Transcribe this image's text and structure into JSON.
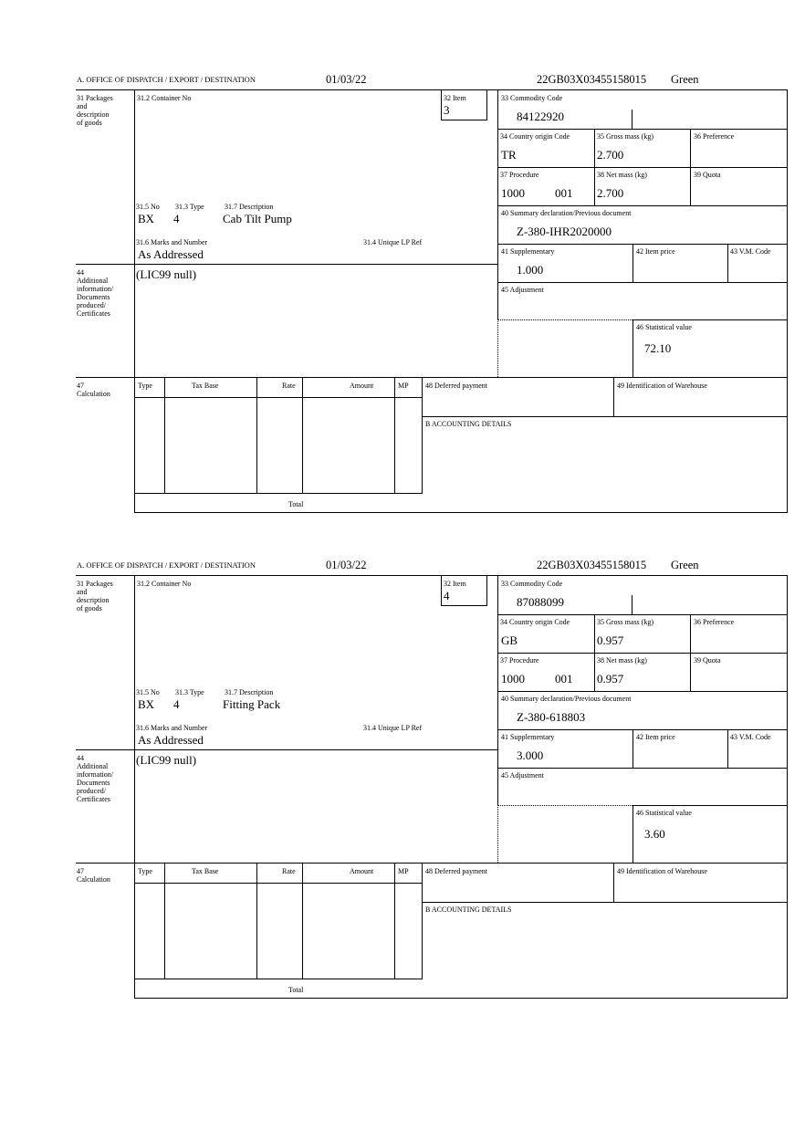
{
  "labels": {
    "office": "A. OFFICE OF DISPATCH / EXPORT / DESTINATION",
    "packages": "31 Packages\nand\ndescription\nof goods",
    "container_no": "31.2 Container No",
    "item": "32 Item",
    "commodity_code": "33 Commodity Code",
    "country_origin": "34 Country origin Code",
    "gross_mass": "35 Gross mass (kg)",
    "preference": "36 Preference",
    "procedure": "37 Procedure",
    "net_mass": "38 Net mass (kg)",
    "quota": "39 Quota",
    "summary_decl": "40 Summary declaration/Previous document",
    "supplementary": "41 Supplementary",
    "item_price": "42 Item price",
    "vm_code": "43 V.M. Code",
    "adjustment": "45 Adjustment",
    "statistical_value": "46 Statistical value",
    "no": "31.5 No",
    "type": "31.3 Type",
    "description": "31.7 Description",
    "marks": "31.6 Marks and Number",
    "unique_lp": "31.4 Unique LP Ref",
    "additional_info": "44\nAdditional\ninformation/\nDocuments\nproduced/\nCertificates",
    "calculation": "47\nCalculation",
    "calc_type": "Type",
    "tax_base": "Tax Base",
    "rate": "Rate",
    "amount": "Amount",
    "mp": "MP",
    "deferred_payment": "48 Deferred payment",
    "warehouse": "49 Identification of Warehouse",
    "accounting": "B ACCOUNTING DETAILS",
    "total": "Total"
  },
  "forms": [
    {
      "date": "01/03/22",
      "reference": "22GB03X03455158015",
      "route": "Green",
      "item": "3",
      "commodity_code": "84122920",
      "country_origin": "TR",
      "gross_mass": "2.700",
      "procedure": "1000",
      "procedure_add": "001",
      "net_mass": "2.700",
      "summary_decl": "Z-380-IHR2020000",
      "supplementary": "1.000",
      "statistical_value": "72.10",
      "pkg_kind": "BX",
      "pkg_count": "4",
      "description": "Cab Tilt Pump",
      "marks": "As Addressed",
      "additional_info": "(LIC99 null)"
    },
    {
      "date": "01/03/22",
      "reference": "22GB03X03455158015",
      "route": "Green",
      "item": "4",
      "commodity_code": "87088099",
      "country_origin": "GB",
      "gross_mass": "0.957",
      "procedure": "1000",
      "procedure_add": "001",
      "net_mass": "0.957",
      "summary_decl": "Z-380-618803",
      "supplementary": "3.000",
      "statistical_value": "3.60",
      "pkg_kind": "BX",
      "pkg_count": "4",
      "description": "Fitting Pack",
      "marks": "As Addressed",
      "additional_info": "(LIC99 null)"
    }
  ]
}
